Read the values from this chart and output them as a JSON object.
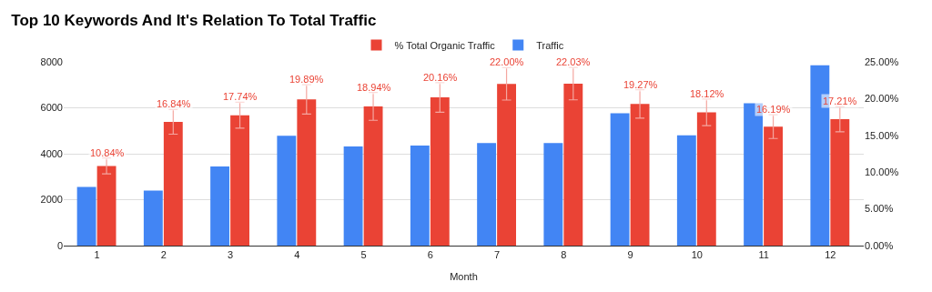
{
  "chart_data": {
    "type": "bar",
    "title": "Top 10 Keywords And It's Relation To Total Traffic",
    "xlabel": "Month",
    "categories": [
      "1",
      "2",
      "3",
      "4",
      "5",
      "6",
      "7",
      "8",
      "9",
      "10",
      "11",
      "12"
    ],
    "series": [
      {
        "name": "Traffic",
        "color": "#4285f4",
        "values": [
          2550,
          2400,
          3450,
          4780,
          4320,
          4360,
          4470,
          4470,
          5760,
          4800,
          6200,
          7850
        ]
      },
      {
        "name": "% Total Organic Traffic",
        "color": "#ea4335",
        "axis": "y2",
        "values": [
          10.84,
          16.84,
          17.74,
          19.89,
          18.94,
          20.16,
          22.0,
          22.03,
          19.27,
          18.12,
          16.19,
          17.21
        ],
        "errors": [
          1.08,
          1.68,
          1.77,
          1.99,
          1.89,
          2.02,
          2.2,
          2.2,
          1.93,
          1.81,
          1.62,
          1.72
        ],
        "value_labels": [
          "10.84%",
          "16.84%",
          "17.74%",
          "19.89%",
          "18.94%",
          "20.16%",
          "22.00%",
          "22.03%",
          "19.27%",
          "18.12%",
          "16.19%",
          "17.21%"
        ]
      }
    ],
    "ylim": [
      0,
      8000
    ],
    "yticks": [
      0,
      2000,
      4000,
      6000,
      8000
    ],
    "y2lim": [
      0,
      25
    ],
    "y2ticks": [
      {
        "value": 0,
        "label": "0.00%"
      },
      {
        "value": 5,
        "label": "5.00%"
      },
      {
        "value": 10,
        "label": "10.00%"
      },
      {
        "value": 15,
        "label": "15.00%"
      },
      {
        "value": 20,
        "label": "20.00%"
      },
      {
        "value": 25,
        "label": "25.00%"
      }
    ],
    "grid": "y",
    "legend": "top"
  }
}
